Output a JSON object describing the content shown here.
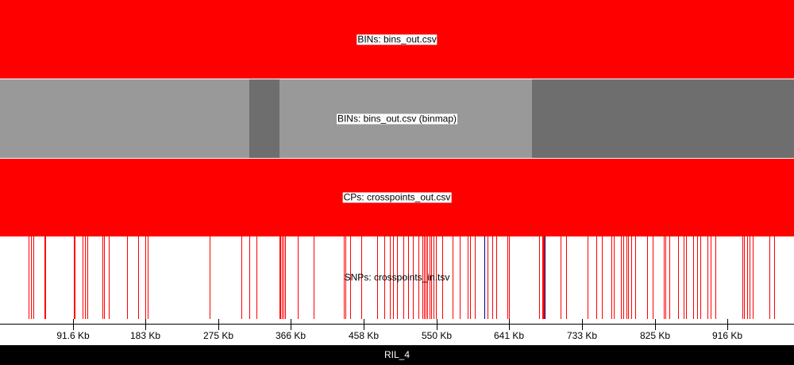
{
  "genome": {
    "length_kb": 1000
  },
  "colors": {
    "bins": "#ff0000",
    "binmap_light": "#999999",
    "binmap_dark": "#6e6e6e",
    "crosspoints": "#ff0000",
    "snp_red": "#ff0000",
    "snp_blue": "#000080"
  },
  "tracks": {
    "bins": {
      "label": "BINs: bins_out.csv",
      "segments": [
        {
          "start_kb": 0,
          "end_kb": 1000,
          "color": "#ff0000"
        }
      ]
    },
    "binmap": {
      "label": "BINs: bins_out.csv (binmap)",
      "segments": [
        {
          "start_kb": 0,
          "end_kb": 314,
          "color": "#999999"
        },
        {
          "start_kb": 314,
          "end_kb": 352,
          "color": "#6e6e6e"
        },
        {
          "start_kb": 352,
          "end_kb": 670,
          "color": "#999999"
        },
        {
          "start_kb": 670,
          "end_kb": 1000,
          "color": "#6e6e6e"
        }
      ]
    },
    "crosspoints": {
      "label": "CPs: crosspoints_out.csv",
      "segments": [
        {
          "start_kb": 0,
          "end_kb": 1000,
          "color": "#ff0000"
        }
      ]
    },
    "snps": {
      "label": "SNPs: crosspoints_in.tsv",
      "positions_kb": [
        36,
        39,
        42,
        56,
        57,
        93,
        94,
        104,
        107,
        110,
        129,
        131,
        137,
        160,
        174,
        183,
        186,
        264,
        304,
        314,
        323,
        352,
        353,
        355,
        357,
        359,
        375,
        395,
        433,
        435,
        441,
        455,
        475,
        484,
        491,
        495,
        500,
        508,
        514,
        520,
        527,
        532,
        534,
        536,
        538,
        541,
        543,
        546,
        549,
        557,
        570,
        579,
        589,
        592,
        598,
        614,
        620,
        625,
        639,
        641,
        679,
        683,
        684,
        685,
        706,
        713,
        740,
        751,
        758,
        770,
        773,
        782,
        785,
        789,
        791,
        795,
        800,
        815,
        822,
        836,
        838,
        843,
        854,
        861,
        864,
        873,
        878,
        882,
        891,
        895,
        901,
        935,
        937,
        941,
        944,
        948,
        969,
        975
      ],
      "blue_positions_kb": [
        610,
        686
      ]
    }
  },
  "axis": {
    "ticks": [
      {
        "pos_kb": 91.6,
        "label": "91.6 Kb"
      },
      {
        "pos_kb": 183,
        "label": "183 Kb"
      },
      {
        "pos_kb": 275,
        "label": "275 Kb"
      },
      {
        "pos_kb": 366,
        "label": "366 Kb"
      },
      {
        "pos_kb": 458,
        "label": "458 Kb"
      },
      {
        "pos_kb": 550,
        "label": "550 Kb"
      },
      {
        "pos_kb": 641,
        "label": "641 Kb"
      },
      {
        "pos_kb": 733,
        "label": "733 Kb"
      },
      {
        "pos_kb": 825,
        "label": "825 Kb"
      },
      {
        "pos_kb": 916,
        "label": "916 Kb"
      }
    ]
  },
  "footer": {
    "label": "RIL_4"
  }
}
